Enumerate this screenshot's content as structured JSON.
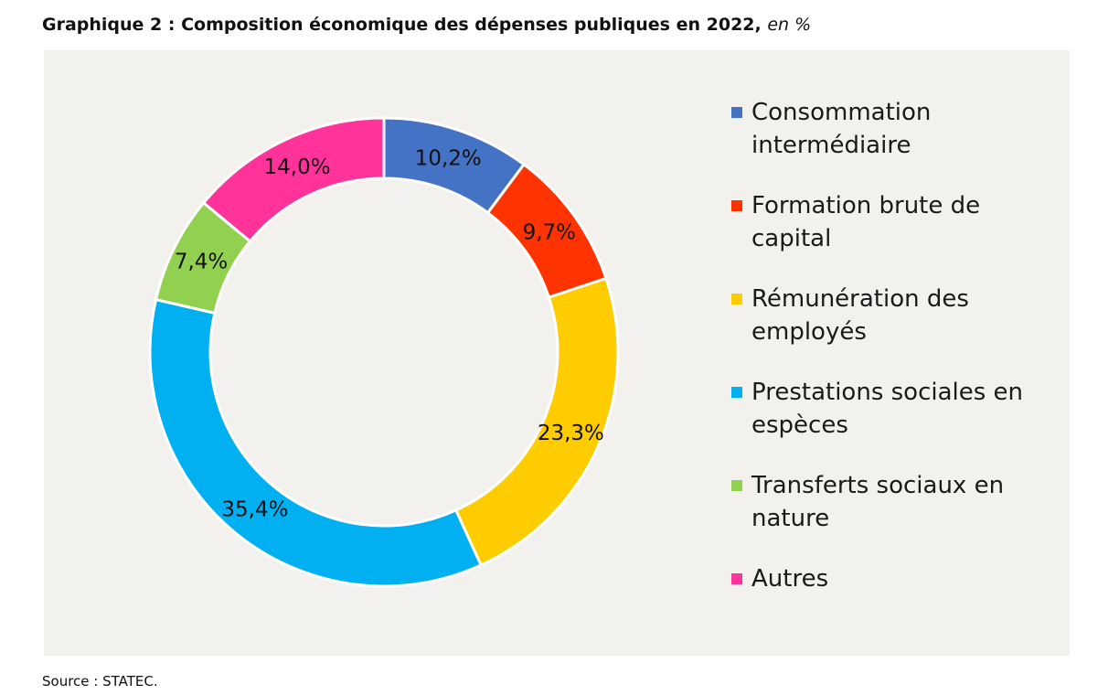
{
  "title": {
    "main": "Graphique 2 : Composition économique des dépenses publiques en 2022,",
    "unit": "en %"
  },
  "source": "Source : STATEC.",
  "chart_data": {
    "type": "pie",
    "variant": "donut",
    "title": "Graphique 2 : Composition économique des dépenses publiques en 2022, en %",
    "legend_position": "right",
    "categories": [
      "Consommation intermédiaire",
      "Formation brute de capital",
      "Rémunération des employés",
      "Prestations sociales en espèces",
      "Transferts sociaux en nature",
      "Autres"
    ],
    "values": [
      10.2,
      9.7,
      23.3,
      35.4,
      7.4,
      14.0
    ],
    "labels": [
      "10,2%",
      "9,7%",
      "23,3%",
      "35,4%",
      "7,4%",
      "14,0%"
    ],
    "colors": [
      "#4472c4",
      "#ff3300",
      "#ffcc00",
      "#00b0f0",
      "#92d050",
      "#ff3399"
    ]
  }
}
